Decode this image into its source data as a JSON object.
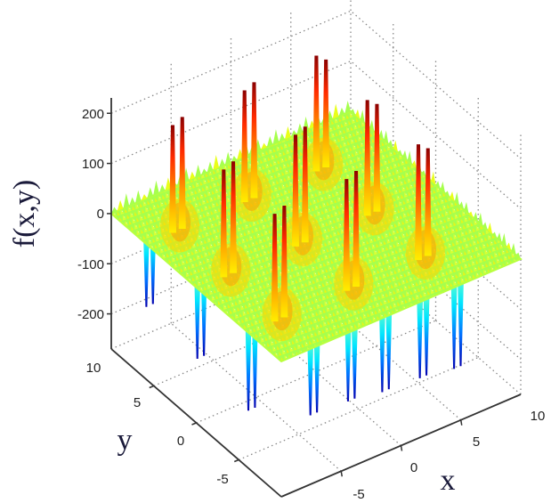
{
  "chart_data": {
    "type": "surface",
    "title": "",
    "function_description": "Multimodal test function surface (Shubert-type) with regular grid of paired high peaks and paired deep troughs over a rippled plane",
    "xlabel": "x",
    "ylabel": "y",
    "zlabel": "f(x,y)",
    "xlim": [
      -10,
      10
    ],
    "ylim": [
      -10,
      10
    ],
    "zlim": [
      -250,
      230
    ],
    "x_ticks": [
      "-5",
      "0",
      "5",
      "10"
    ],
    "y_ticks": [
      "-5",
      "0",
      "5",
      "10"
    ],
    "z_ticks": [
      "200",
      "100",
      "0",
      "-100",
      "-200"
    ],
    "grid": true,
    "colormap": "jet",
    "colorbar": false,
    "view": "3D isometric, azimuth approx -37.5, elevation approx 30",
    "peaks": {
      "approx_max": 210,
      "count_visible_pairs": 9,
      "grid_positions_xy": [
        [
          -7,
          7
        ],
        [
          -1,
          7
        ],
        [
          5,
          7
        ],
        [
          -7,
          1
        ],
        [
          -1,
          1
        ],
        [
          5,
          1
        ],
        [
          -7,
          -5
        ],
        [
          -1,
          -5
        ],
        [
          5,
          -5
        ]
      ]
    },
    "troughs": {
      "approx_min": -190,
      "visible_along_front_edges": true
    },
    "base_level": 0
  },
  "axes": {
    "z_ticks": [
      {
        "label": "200",
        "value": 200
      },
      {
        "label": "100",
        "value": 100
      },
      {
        "label": "0",
        "value": 0
      },
      {
        "label": "-100",
        "value": -100
      },
      {
        "label": "-200",
        "value": -200
      }
    ],
    "y_ticks": [
      {
        "label": "10",
        "value": 10
      },
      {
        "label": "5",
        "value": 5
      },
      {
        "label": "0",
        "value": 0
      },
      {
        "label": "-5",
        "value": -5
      }
    ],
    "x_ticks": [
      {
        "label": "-5",
        "value": -5
      },
      {
        "label": "0",
        "value": 0
      },
      {
        "label": "5",
        "value": 5
      },
      {
        "label": "10",
        "value": 10
      }
    ],
    "z_title": "f(x,y)",
    "y_title": "y",
    "x_title": "x"
  },
  "colors": {
    "peak_dark": "#8b0000",
    "peak": "#ff2a00",
    "orange": "#ff9900",
    "yellow": "#ffff00",
    "base": "#a6ff4d",
    "cyan": "#00e5ff",
    "blue": "#0040ff",
    "trough_dark": "#0000b0",
    "axis": "#333333",
    "grid": "#888888"
  }
}
